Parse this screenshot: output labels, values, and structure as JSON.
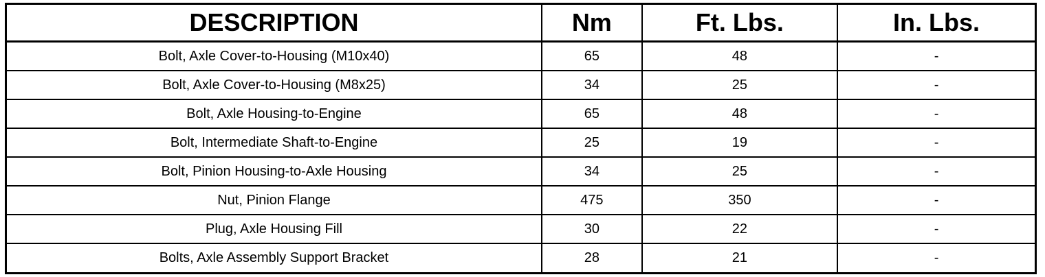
{
  "table": {
    "headers": [
      "DESCRIPTION",
      "Nm",
      "Ft. Lbs.",
      "In. Lbs."
    ],
    "rows": [
      [
        "Bolt, Axle Cover-to-Housing (M10x40)",
        "65",
        "48",
        "-"
      ],
      [
        "Bolt, Axle Cover-to-Housing (M8x25)",
        "34",
        "25",
        "-"
      ],
      [
        "Bolt, Axle Housing-to-Engine",
        "65",
        "48",
        "-"
      ],
      [
        "Bolt, Intermediate Shaft-to-Engine",
        "25",
        "19",
        "-"
      ],
      [
        "Bolt, Pinion Housing-to-Axle Housing",
        "34",
        "25",
        "-"
      ],
      [
        "Nut, Pinion Flange",
        "475",
        "350",
        "-"
      ],
      [
        "Plug, Axle Housing Fill",
        "30",
        "22",
        "-"
      ],
      [
        "Bolts, Axle Assembly Support Bracket",
        "28",
        "21",
        "-"
      ]
    ]
  }
}
